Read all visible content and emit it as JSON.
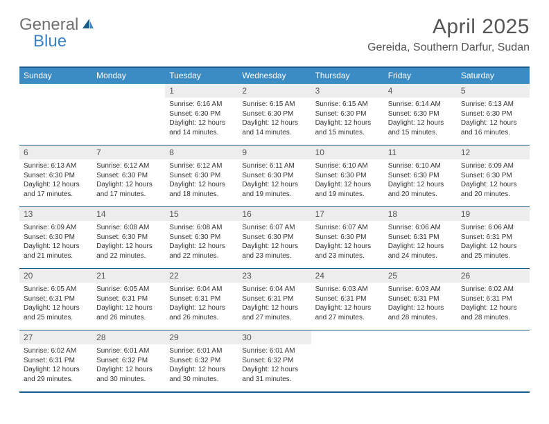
{
  "brand": {
    "general": "General",
    "blue": "Blue"
  },
  "title": "April 2025",
  "location": "Gereida, Southern Darfur, Sudan",
  "colors": {
    "header_bar": "#3b8bc4",
    "border": "#1a5a8a",
    "daynum_bg": "#ededed",
    "text": "#333333",
    "brand_gray": "#707070",
    "brand_blue": "#3b82c4"
  },
  "weekdays": [
    "Sunday",
    "Monday",
    "Tuesday",
    "Wednesday",
    "Thursday",
    "Friday",
    "Saturday"
  ],
  "weeks": [
    [
      {
        "n": "",
        "sr": "",
        "ss": "",
        "dl": ""
      },
      {
        "n": "",
        "sr": "",
        "ss": "",
        "dl": ""
      },
      {
        "n": "1",
        "sr": "Sunrise: 6:16 AM",
        "ss": "Sunset: 6:30 PM",
        "dl": "Daylight: 12 hours and 14 minutes."
      },
      {
        "n": "2",
        "sr": "Sunrise: 6:15 AM",
        "ss": "Sunset: 6:30 PM",
        "dl": "Daylight: 12 hours and 14 minutes."
      },
      {
        "n": "3",
        "sr": "Sunrise: 6:15 AM",
        "ss": "Sunset: 6:30 PM",
        "dl": "Daylight: 12 hours and 15 minutes."
      },
      {
        "n": "4",
        "sr": "Sunrise: 6:14 AM",
        "ss": "Sunset: 6:30 PM",
        "dl": "Daylight: 12 hours and 15 minutes."
      },
      {
        "n": "5",
        "sr": "Sunrise: 6:13 AM",
        "ss": "Sunset: 6:30 PM",
        "dl": "Daylight: 12 hours and 16 minutes."
      }
    ],
    [
      {
        "n": "6",
        "sr": "Sunrise: 6:13 AM",
        "ss": "Sunset: 6:30 PM",
        "dl": "Daylight: 12 hours and 17 minutes."
      },
      {
        "n": "7",
        "sr": "Sunrise: 6:12 AM",
        "ss": "Sunset: 6:30 PM",
        "dl": "Daylight: 12 hours and 17 minutes."
      },
      {
        "n": "8",
        "sr": "Sunrise: 6:12 AM",
        "ss": "Sunset: 6:30 PM",
        "dl": "Daylight: 12 hours and 18 minutes."
      },
      {
        "n": "9",
        "sr": "Sunrise: 6:11 AM",
        "ss": "Sunset: 6:30 PM",
        "dl": "Daylight: 12 hours and 19 minutes."
      },
      {
        "n": "10",
        "sr": "Sunrise: 6:10 AM",
        "ss": "Sunset: 6:30 PM",
        "dl": "Daylight: 12 hours and 19 minutes."
      },
      {
        "n": "11",
        "sr": "Sunrise: 6:10 AM",
        "ss": "Sunset: 6:30 PM",
        "dl": "Daylight: 12 hours and 20 minutes."
      },
      {
        "n": "12",
        "sr": "Sunrise: 6:09 AM",
        "ss": "Sunset: 6:30 PM",
        "dl": "Daylight: 12 hours and 20 minutes."
      }
    ],
    [
      {
        "n": "13",
        "sr": "Sunrise: 6:09 AM",
        "ss": "Sunset: 6:30 PM",
        "dl": "Daylight: 12 hours and 21 minutes."
      },
      {
        "n": "14",
        "sr": "Sunrise: 6:08 AM",
        "ss": "Sunset: 6:30 PM",
        "dl": "Daylight: 12 hours and 22 minutes."
      },
      {
        "n": "15",
        "sr": "Sunrise: 6:08 AM",
        "ss": "Sunset: 6:30 PM",
        "dl": "Daylight: 12 hours and 22 minutes."
      },
      {
        "n": "16",
        "sr": "Sunrise: 6:07 AM",
        "ss": "Sunset: 6:30 PM",
        "dl": "Daylight: 12 hours and 23 minutes."
      },
      {
        "n": "17",
        "sr": "Sunrise: 6:07 AM",
        "ss": "Sunset: 6:30 PM",
        "dl": "Daylight: 12 hours and 23 minutes."
      },
      {
        "n": "18",
        "sr": "Sunrise: 6:06 AM",
        "ss": "Sunset: 6:31 PM",
        "dl": "Daylight: 12 hours and 24 minutes."
      },
      {
        "n": "19",
        "sr": "Sunrise: 6:06 AM",
        "ss": "Sunset: 6:31 PM",
        "dl": "Daylight: 12 hours and 25 minutes."
      }
    ],
    [
      {
        "n": "20",
        "sr": "Sunrise: 6:05 AM",
        "ss": "Sunset: 6:31 PM",
        "dl": "Daylight: 12 hours and 25 minutes."
      },
      {
        "n": "21",
        "sr": "Sunrise: 6:05 AM",
        "ss": "Sunset: 6:31 PM",
        "dl": "Daylight: 12 hours and 26 minutes."
      },
      {
        "n": "22",
        "sr": "Sunrise: 6:04 AM",
        "ss": "Sunset: 6:31 PM",
        "dl": "Daylight: 12 hours and 26 minutes."
      },
      {
        "n": "23",
        "sr": "Sunrise: 6:04 AM",
        "ss": "Sunset: 6:31 PM",
        "dl": "Daylight: 12 hours and 27 minutes."
      },
      {
        "n": "24",
        "sr": "Sunrise: 6:03 AM",
        "ss": "Sunset: 6:31 PM",
        "dl": "Daylight: 12 hours and 27 minutes."
      },
      {
        "n": "25",
        "sr": "Sunrise: 6:03 AM",
        "ss": "Sunset: 6:31 PM",
        "dl": "Daylight: 12 hours and 28 minutes."
      },
      {
        "n": "26",
        "sr": "Sunrise: 6:02 AM",
        "ss": "Sunset: 6:31 PM",
        "dl": "Daylight: 12 hours and 28 minutes."
      }
    ],
    [
      {
        "n": "27",
        "sr": "Sunrise: 6:02 AM",
        "ss": "Sunset: 6:31 PM",
        "dl": "Daylight: 12 hours and 29 minutes."
      },
      {
        "n": "28",
        "sr": "Sunrise: 6:01 AM",
        "ss": "Sunset: 6:32 PM",
        "dl": "Daylight: 12 hours and 30 minutes."
      },
      {
        "n": "29",
        "sr": "Sunrise: 6:01 AM",
        "ss": "Sunset: 6:32 PM",
        "dl": "Daylight: 12 hours and 30 minutes."
      },
      {
        "n": "30",
        "sr": "Sunrise: 6:01 AM",
        "ss": "Sunset: 6:32 PM",
        "dl": "Daylight: 12 hours and 31 minutes."
      },
      {
        "n": "",
        "sr": "",
        "ss": "",
        "dl": ""
      },
      {
        "n": "",
        "sr": "",
        "ss": "",
        "dl": ""
      },
      {
        "n": "",
        "sr": "",
        "ss": "",
        "dl": ""
      }
    ]
  ]
}
